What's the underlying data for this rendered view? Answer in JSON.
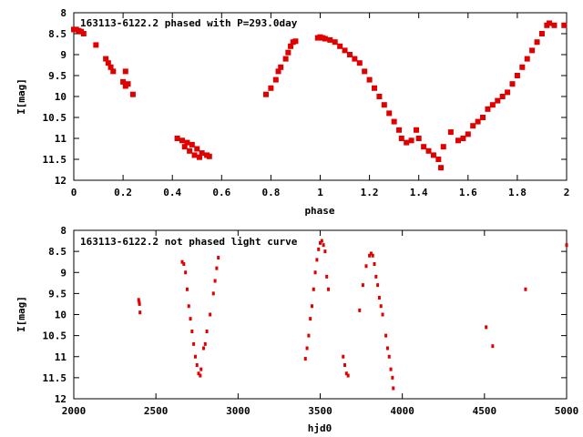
{
  "chart_data": [
    {
      "type": "scatter",
      "title": "163113-6122.2 phased with P=293.0day",
      "xlabel": "phase",
      "ylabel": "I[mag]",
      "xlim": [
        0,
        2
      ],
      "ylim": [
        12,
        8
      ],
      "y_inverted": true,
      "grid": false,
      "xticks": [
        0,
        0.2,
        0.4,
        0.6,
        0.8,
        1,
        1.2,
        1.4,
        1.6,
        1.8,
        2
      ],
      "xtick_labels": [
        "0",
        "0.2",
        "0.4",
        "0.6",
        "0.8",
        "1",
        "1.2",
        "1.4",
        "1.6",
        "1.8",
        "2"
      ],
      "yticks": [
        8,
        8.5,
        9,
        9.5,
        10,
        10.5,
        11,
        11.5,
        12
      ],
      "ytick_labels": [
        "8",
        "8.5",
        "9",
        "9.5",
        "10",
        "10.5",
        "11",
        "11.5",
        "12"
      ],
      "series": [
        {
          "color": "#e00000",
          "marker": "filled-square",
          "x": [
            0.0,
            0.01,
            0.02,
            0.03,
            0.04,
            0.09,
            0.13,
            0.14,
            0.15,
            0.16,
            0.2,
            0.21,
            0.22,
            0.21,
            0.24,
            0.42,
            0.44,
            0.45,
            0.46,
            0.47,
            0.48,
            0.49,
            0.5,
            0.51,
            0.52,
            0.54,
            0.55,
            0.78,
            0.8,
            0.82,
            0.83,
            0.84,
            0.86,
            0.87,
            0.88,
            0.89,
            0.9,
            0.99,
            1.0,
            1.01,
            1.02,
            1.04,
            1.06,
            1.08,
            1.1,
            1.12,
            1.14,
            1.16,
            1.18,
            1.2,
            1.22,
            1.24,
            1.26,
            1.28,
            1.3,
            1.32,
            1.33,
            1.35,
            1.37,
            1.39,
            1.4,
            1.42,
            1.44,
            1.46,
            1.48,
            1.49,
            1.5,
            1.53,
            1.56,
            1.58,
            1.6,
            1.62,
            1.64,
            1.66,
            1.68,
            1.7,
            1.72,
            1.74,
            1.76,
            1.78,
            1.8,
            1.82,
            1.84,
            1.86,
            1.88,
            1.9,
            1.92,
            1.93,
            1.95,
            1.99
          ],
          "y": [
            8.4,
            8.4,
            8.43,
            8.45,
            8.5,
            8.77,
            9.1,
            9.2,
            9.3,
            9.4,
            9.65,
            9.75,
            9.7,
            9.4,
            9.95,
            11.0,
            11.05,
            11.2,
            11.1,
            11.3,
            11.15,
            11.4,
            11.25,
            11.45,
            11.35,
            11.4,
            11.43,
            9.95,
            9.8,
            9.6,
            9.4,
            9.3,
            9.1,
            8.95,
            8.8,
            8.7,
            8.68,
            8.6,
            8.58,
            8.6,
            8.62,
            8.65,
            8.7,
            8.8,
            8.9,
            9.0,
            9.1,
            9.2,
            9.4,
            9.6,
            9.8,
            10.0,
            10.2,
            10.4,
            10.6,
            10.8,
            11.0,
            11.1,
            11.05,
            10.8,
            11.0,
            11.2,
            11.3,
            11.4,
            11.5,
            11.7,
            11.2,
            10.85,
            11.05,
            11.0,
            10.9,
            10.7,
            10.6,
            10.5,
            10.3,
            10.2,
            10.1,
            10.0,
            9.9,
            9.7,
            9.5,
            9.3,
            9.1,
            8.9,
            8.7,
            8.5,
            8.3,
            8.25,
            8.3,
            8.3
          ]
        }
      ]
    },
    {
      "type": "scatter",
      "title": "163113-6122.2 not phased light curve",
      "xlabel": "hjd0",
      "ylabel": "I[mag]",
      "xlim": [
        2000,
        5000
      ],
      "ylim": [
        12,
        8
      ],
      "y_inverted": true,
      "grid": false,
      "xticks": [
        2000,
        2500,
        3000,
        3500,
        4000,
        4500,
        5000
      ],
      "xtick_labels": [
        "2000",
        "2500",
        "3000",
        "3500",
        "4000",
        "4500",
        "5000"
      ],
      "yticks": [
        8,
        8.5,
        9,
        9.5,
        10,
        10.5,
        11,
        11.5,
        12
      ],
      "ytick_labels": [
        "8",
        "8.5",
        "9",
        "9.5",
        "10",
        "10.5",
        "11",
        "11.5",
        "12"
      ],
      "series": [
        {
          "color": "#e00000",
          "marker": "small-dot",
          "x": [
            2395,
            2398,
            2400,
            2403,
            2660,
            2670,
            2680,
            2690,
            2700,
            2710,
            2720,
            2730,
            2740,
            2750,
            2760,
            2770,
            2775,
            2790,
            2800,
            2810,
            2830,
            2850,
            2860,
            2870,
            2880,
            3410,
            3420,
            3430,
            3440,
            3450,
            3460,
            3470,
            3480,
            3490,
            3500,
            3510,
            3520,
            3530,
            3540,
            3550,
            3640,
            3650,
            3660,
            3670,
            3740,
            3760,
            3780,
            3800,
            3810,
            3820,
            3830,
            3840,
            3850,
            3860,
            3870,
            3880,
            3900,
            3910,
            3920,
            3930,
            3940,
            3945,
            4510,
            4550,
            4750,
            5000
          ],
          "y": [
            9.65,
            9.7,
            9.75,
            9.95,
            8.75,
            8.8,
            9.0,
            9.4,
            9.8,
            10.1,
            10.4,
            10.7,
            11.0,
            11.2,
            11.4,
            11.45,
            11.3,
            10.8,
            10.7,
            10.4,
            10.0,
            9.5,
            9.2,
            8.9,
            8.65,
            11.05,
            10.8,
            10.5,
            10.1,
            9.8,
            9.4,
            9.0,
            8.7,
            8.45,
            8.3,
            8.25,
            8.35,
            8.5,
            9.1,
            9.4,
            11.0,
            11.2,
            11.4,
            11.45,
            9.9,
            9.3,
            8.85,
            8.6,
            8.55,
            8.6,
            8.8,
            9.1,
            9.3,
            9.6,
            9.8,
            10.0,
            10.5,
            10.8,
            11.0,
            11.3,
            11.5,
            11.75,
            10.3,
            10.75,
            9.4,
            8.35
          ]
        }
      ]
    }
  ]
}
